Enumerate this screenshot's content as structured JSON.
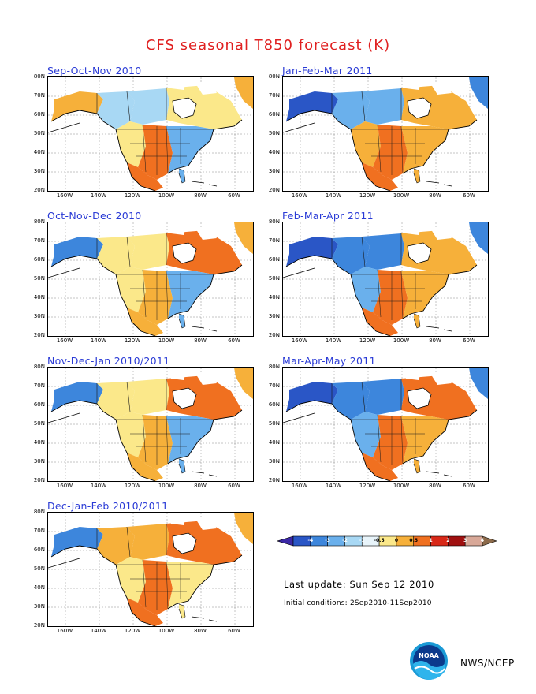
{
  "title": "CFS seasonal T850 forecast (K)",
  "panels": [
    {
      "label": "Sep-Oct-Nov 2010"
    },
    {
      "label": "Jan-Feb-Mar 2011"
    },
    {
      "label": "Oct-Nov-Dec 2010"
    },
    {
      "label": "Feb-Mar-Apr 2011"
    },
    {
      "label": "Nov-Dec-Jan 2010/2011"
    },
    {
      "label": "Mar-Apr-May 2011"
    },
    {
      "label": "Dec-Jan-Feb 2010/2011"
    }
  ],
  "axes": {
    "lat_labels": [
      "80N",
      "70N",
      "60N",
      "50N",
      "40N",
      "30N",
      "20N"
    ],
    "lon_labels": [
      "160W",
      "140W",
      "120W",
      "100W",
      "80W",
      "60W"
    ]
  },
  "colorbar": {
    "labels": [
      "-4",
      "-3",
      "-2",
      "-1",
      "-0.5",
      "0",
      "0.5",
      "1",
      "2",
      "3",
      "4"
    ],
    "colors": [
      "#3b28a6",
      "#2a56c6",
      "#3d86dc",
      "#6ab0ec",
      "#a8d8f4",
      "#e8f4fa",
      "#fbe88a",
      "#f6b03a",
      "#f07020",
      "#d82818",
      "#a01010",
      "#d8a898",
      "#8c6a4a"
    ]
  },
  "last_update": "Last update: Sun Sep 12 2010",
  "initial_conditions": "Initial conditions: 2Sep2010-11Sep2010",
  "agency": "NWS/NCEP",
  "logo_text": "NOAA"
}
